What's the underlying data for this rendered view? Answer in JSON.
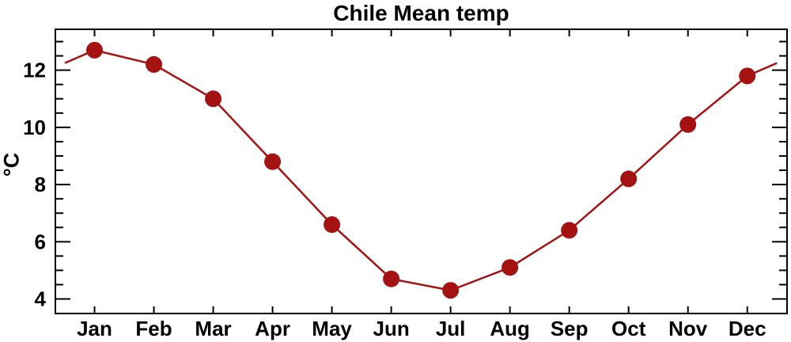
{
  "title": "Chile Mean temp",
  "chart_data": {
    "type": "line",
    "title": "Chile Mean temp",
    "categories": [
      "Jan",
      "Feb",
      "Mar",
      "Apr",
      "May",
      "Jun",
      "Jul",
      "Aug",
      "Sep",
      "Oct",
      "Nov",
      "Dec"
    ],
    "values": [
      12.7,
      12.2,
      11.0,
      8.8,
      6.6,
      4.7,
      4.3,
      5.1,
      6.4,
      8.2,
      10.1,
      11.8
    ],
    "xlabel": "",
    "ylabel": "°C",
    "xlim": [
      0.34,
      12.67
    ],
    "ylim": [
      3.49,
      13.43
    ],
    "y_major_ticks": [
      4,
      6,
      8,
      10,
      12
    ],
    "y_minor_step": 0.5,
    "x_ticks_at_month_centers": true,
    "ticks_mirrored_all_sides": true,
    "grid": false,
    "legend": false,
    "wrap_around_line": true,
    "wrap_edge_x": [
      0.5,
      12.5
    ],
    "line_color": "#A41212",
    "marker_color": "#A41212",
    "frame_color": "#000000",
    "text_color": "#000000",
    "background_color": "#FFFFFF"
  }
}
